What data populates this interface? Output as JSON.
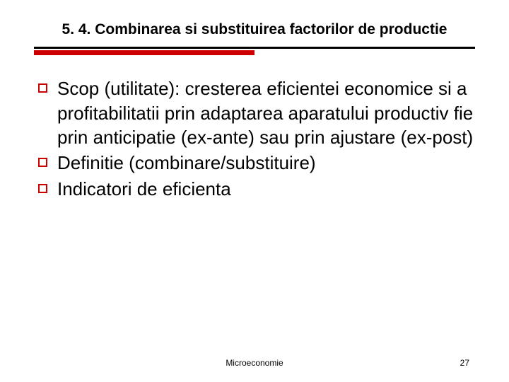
{
  "title": "5. 4. Combinarea si substituirea factorilor de productie",
  "title_fontsize": 21,
  "title_color": "#000000",
  "divider": {
    "full_color": "#000000",
    "half_color": "#cc0000"
  },
  "bullets": {
    "box_border_color": "#cc0000",
    "text_fontsize": 26,
    "items": [
      "Scop (utilitate): cresterea eficientei economice si a profitabilitatii prin adaptarea aparatului productiv fie prin anticipatie (ex-ante) sau prin ajustare (ex-post)",
      "Definitie (combinare/substituire)",
      "Indicatori de eficienta"
    ]
  },
  "footer": {
    "center": "Microeconomie",
    "page": "27",
    "fontsize": 12
  },
  "background_color": "#ffffff"
}
